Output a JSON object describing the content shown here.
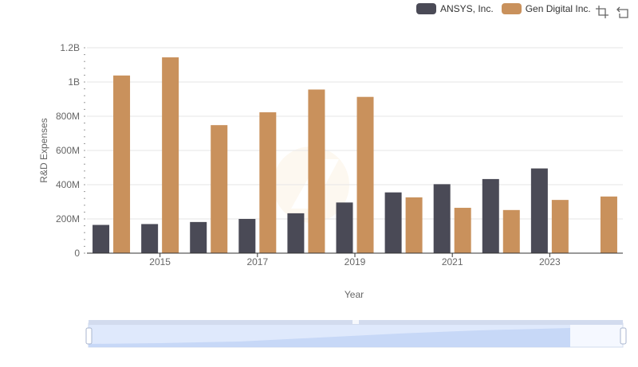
{
  "legend": {
    "items": [
      {
        "name": "ANSYS, Inc.",
        "color": "#4a4a56"
      },
      {
        "name": "Gen Digital Inc.",
        "color": "#c9915c"
      }
    ]
  },
  "toolbox": {
    "icons": [
      "zoom-icon",
      "restore-icon"
    ]
  },
  "chart_data": {
    "type": "bar",
    "title": "",
    "xlabel": "Year",
    "ylabel": "R&D Expenses",
    "ylim": [
      0,
      1200000000
    ],
    "y_ticks": [
      "0",
      "200M",
      "400M",
      "600M",
      "800M",
      "1B",
      "1.2B"
    ],
    "x_tick_labels": [
      "2015",
      "2017",
      "2019",
      "2021",
      "2023"
    ],
    "categories": [
      "2014",
      "2015",
      "2016",
      "2017",
      "2018",
      "2019",
      "2020",
      "2021",
      "2022",
      "2023",
      "2024"
    ],
    "series": [
      {
        "name": "ANSYS, Inc.",
        "color": "#4a4a56",
        "values": [
          165000000,
          170000000,
          182000000,
          200000000,
          233000000,
          296000000,
          355000000,
          403000000,
          433000000,
          495000000,
          null
        ]
      },
      {
        "name": "Gen Digital Inc.",
        "color": "#c9915c",
        "values": [
          1038000000,
          1144000000,
          748000000,
          823000000,
          956000000,
          913000000,
          326000000,
          265000000,
          252000000,
          311000000,
          331000000
        ]
      }
    ],
    "grid": true,
    "legend_position": "top-right"
  }
}
